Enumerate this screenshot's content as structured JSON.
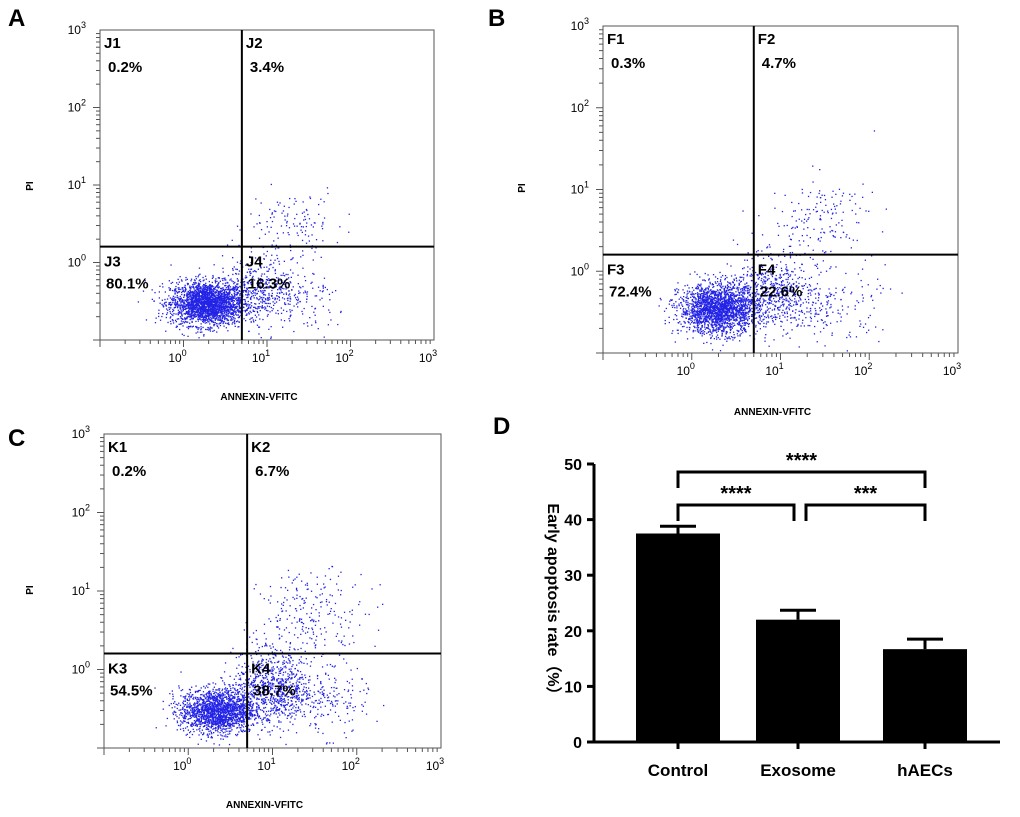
{
  "colors": {
    "dots": "#2323e6",
    "bars": "#000000",
    "axis": "#000000"
  },
  "chart_data": [
    {
      "panel": "A",
      "type": "scatter",
      "xlabel": "ANNEXIN-VFITC",
      "ylabel": "PI",
      "xlim": [
        0.1,
        1000
      ],
      "ylim": [
        0.1,
        1000
      ],
      "x_ticks": [
        {
          "base": "10",
          "exp": "0"
        },
        {
          "base": "10",
          "exp": "1"
        },
        {
          "base": "10",
          "exp": "2"
        },
        {
          "base": "10",
          "exp": "3"
        }
      ],
      "y_ticks": [
        {
          "base": "10",
          "exp": "0"
        },
        {
          "base": "10",
          "exp": "1"
        },
        {
          "base": "10",
          "exp": "2"
        },
        {
          "base": "10",
          "exp": "3"
        }
      ],
      "gate": {
        "x": 5,
        "y": 1.6
      },
      "quadrants": [
        {
          "name": "J1",
          "percent": "0.2%"
        },
        {
          "name": "J2",
          "percent": "3.4%"
        },
        {
          "name": "J3",
          "percent": "80.1%"
        },
        {
          "name": "J4",
          "percent": "16.3%"
        }
      ],
      "populations": [
        {
          "cx": 1.9,
          "cy": 0.3,
          "sx": 0.22,
          "sy": 0.14,
          "n": 2400
        },
        {
          "cx": 8,
          "cy": 0.45,
          "sx": 0.22,
          "sy": 0.2,
          "n": 380
        },
        {
          "cx": 25,
          "cy": 0.3,
          "sx": 0.3,
          "sy": 0.22,
          "n": 130
        },
        {
          "cx": 22,
          "cy": 3.5,
          "sx": 0.28,
          "sy": 0.22,
          "n": 110
        },
        {
          "cx": 8,
          "cy": 1.5,
          "sx": 0.2,
          "sy": 0.18,
          "n": 40
        }
      ]
    },
    {
      "panel": "B",
      "type": "scatter",
      "xlabel": "ANNEXIN-VFITC",
      "ylabel": "PI",
      "xlim": [
        0.1,
        1000
      ],
      "ylim": [
        0.1,
        1000
      ],
      "x_ticks": [
        {
          "base": "10",
          "exp": "0"
        },
        {
          "base": "10",
          "exp": "1"
        },
        {
          "base": "10",
          "exp": "2"
        },
        {
          "base": "10",
          "exp": "3"
        }
      ],
      "y_ticks": [
        {
          "base": "10",
          "exp": "0"
        },
        {
          "base": "10",
          "exp": "1"
        },
        {
          "base": "10",
          "exp": "2"
        },
        {
          "base": "10",
          "exp": "3"
        }
      ],
      "gate": {
        "x": 5,
        "y": 1.6
      },
      "quadrants": [
        {
          "name": "F1",
          "percent": "0.3%"
        },
        {
          "name": "F2",
          "percent": "4.7%"
        },
        {
          "name": "F3",
          "percent": "72.4%"
        },
        {
          "name": "F4",
          "percent": "22.6%"
        }
      ],
      "populations": [
        {
          "cx": 2.0,
          "cy": 0.35,
          "sx": 0.22,
          "sy": 0.15,
          "n": 2100
        },
        {
          "cx": 8,
          "cy": 0.55,
          "sx": 0.25,
          "sy": 0.2,
          "n": 500
        },
        {
          "cx": 30,
          "cy": 0.35,
          "sx": 0.32,
          "sy": 0.22,
          "n": 180
        },
        {
          "cx": 30,
          "cy": 4.5,
          "sx": 0.3,
          "sy": 0.25,
          "n": 150
        },
        {
          "cx": 9,
          "cy": 1.5,
          "sx": 0.2,
          "sy": 0.2,
          "n": 50
        }
      ]
    },
    {
      "panel": "C",
      "type": "scatter",
      "xlabel": "ANNEXIN-VFITC",
      "ylabel": "PI",
      "xlim": [
        0.1,
        1000
      ],
      "ylim": [
        0.1,
        1000
      ],
      "x_ticks": [
        {
          "base": "10",
          "exp": "0"
        },
        {
          "base": "10",
          "exp": "1"
        },
        {
          "base": "10",
          "exp": "2"
        },
        {
          "base": "10",
          "exp": "3"
        }
      ],
      "y_ticks": [
        {
          "base": "10",
          "exp": "0"
        },
        {
          "base": "10",
          "exp": "1"
        },
        {
          "base": "10",
          "exp": "2"
        },
        {
          "base": "10",
          "exp": "3"
        }
      ],
      "gate": {
        "x": 5,
        "y": 1.6
      },
      "quadrants": [
        {
          "name": "K1",
          "percent": "0.2%"
        },
        {
          "name": "K2",
          "percent": "6.7%"
        },
        {
          "name": "K3",
          "percent": "54.5%"
        },
        {
          "name": "K4",
          "percent": "38.7%"
        }
      ],
      "populations": [
        {
          "cx": 2.2,
          "cy": 0.3,
          "sx": 0.22,
          "sy": 0.14,
          "n": 1800
        },
        {
          "cx": 10,
          "cy": 0.55,
          "sx": 0.25,
          "sy": 0.22,
          "n": 750
        },
        {
          "cx": 35,
          "cy": 0.4,
          "sx": 0.3,
          "sy": 0.22,
          "n": 200
        },
        {
          "cx": 30,
          "cy": 5,
          "sx": 0.32,
          "sy": 0.28,
          "n": 230
        },
        {
          "cx": 9,
          "cy": 1.8,
          "sx": 0.2,
          "sy": 0.2,
          "n": 60
        }
      ]
    },
    {
      "panel": "D",
      "type": "bar",
      "categories": [
        "Control",
        "Exosome",
        "hAECs"
      ],
      "values": [
        37.5,
        22,
        16.7
      ],
      "errors": [
        1.3,
        1.7,
        1.8
      ],
      "ylabel": "Early apoptosis rate（%）",
      "ylim": [
        0,
        50
      ],
      "yticks": [
        "0",
        "10",
        "20",
        "30",
        "40",
        "50"
      ],
      "significance": [
        {
          "from": 0,
          "to": 2,
          "label": "****",
          "level": 1
        },
        {
          "from": 0,
          "to": 1,
          "label": "****",
          "level": 0
        },
        {
          "from": 1,
          "to": 2,
          "label": "***",
          "level": 0
        }
      ]
    }
  ]
}
